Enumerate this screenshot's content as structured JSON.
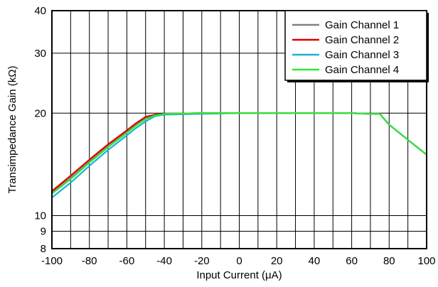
{
  "chart_data": {
    "type": "line",
    "title": "",
    "xlabel": "Input Current (μA)",
    "ylabel": "Transimpedance Gain (kΩ)",
    "xlim": [
      -100,
      100
    ],
    "ylim": [
      8,
      40
    ],
    "yscale": "log",
    "grid": true,
    "legend_position": "top-right",
    "x_ticks": [
      -100,
      -80,
      -60,
      -40,
      -20,
      0,
      20,
      40,
      60,
      80,
      100
    ],
    "x_tick_labels": [
      "-100",
      "-80",
      "-60",
      "-40",
      "-20",
      "0",
      "20",
      "40",
      "60",
      "80",
      "100"
    ],
    "y_ticks": [
      8,
      9,
      10,
      20,
      30,
      40
    ],
    "y_tick_labels": [
      "8",
      "9",
      "10",
      "20",
      "30",
      "40"
    ],
    "y_gridlines": [
      8,
      9,
      10,
      20,
      30,
      40
    ],
    "series": [
      {
        "name": "Gain Channel 1",
        "color": "#808080",
        "x": [
          -100,
          -90,
          -80,
          -70,
          -60,
          -55,
          -50,
          -45,
          -40,
          -20,
          0,
          20,
          40,
          60,
          70,
          75,
          80,
          90,
          100
        ],
        "y": [
          11.7,
          12.9,
          14.4,
          16.0,
          17.6,
          18.5,
          19.3,
          19.8,
          19.9,
          20.0,
          20.0,
          20.0,
          20.0,
          20.0,
          19.9,
          19.9,
          18.5,
          16.7,
          15.1
        ]
      },
      {
        "name": "Gain Channel 2",
        "color": "#e00000",
        "x": [
          -100,
          -90,
          -80,
          -70,
          -60,
          -55,
          -50,
          -45,
          -40,
          -20,
          0,
          20,
          40,
          60,
          70,
          75,
          80,
          90,
          100
        ],
        "y": [
          11.8,
          13.1,
          14.6,
          16.2,
          17.8,
          18.7,
          19.5,
          19.8,
          19.9,
          20.0,
          20.0,
          20.0,
          20.0,
          20.0,
          19.9,
          19.9,
          18.5,
          16.7,
          15.1
        ]
      },
      {
        "name": "Gain Channel 3",
        "color": "#19b2d6",
        "x": [
          -100,
          -90,
          -80,
          -70,
          -60,
          -55,
          -50,
          -45,
          -40,
          -20,
          0,
          20,
          40,
          60,
          70,
          75,
          80,
          90,
          100
        ],
        "y": [
          11.3,
          12.5,
          14.0,
          15.6,
          17.2,
          18.1,
          18.9,
          19.6,
          19.8,
          19.9,
          20.0,
          20.0,
          20.0,
          20.0,
          19.9,
          19.9,
          18.5,
          16.7,
          15.1
        ]
      },
      {
        "name": "Gain Channel 4",
        "color": "#33e633",
        "x": [
          -100,
          -90,
          -80,
          -70,
          -60,
          -55,
          -50,
          -45,
          -40,
          -20,
          0,
          20,
          40,
          60,
          70,
          75,
          80,
          90,
          100
        ],
        "y": [
          11.6,
          12.8,
          14.3,
          15.9,
          17.5,
          18.4,
          19.2,
          19.7,
          19.9,
          20.0,
          20.0,
          20.0,
          20.0,
          20.0,
          19.9,
          19.9,
          18.5,
          16.7,
          15.1
        ]
      }
    ]
  }
}
